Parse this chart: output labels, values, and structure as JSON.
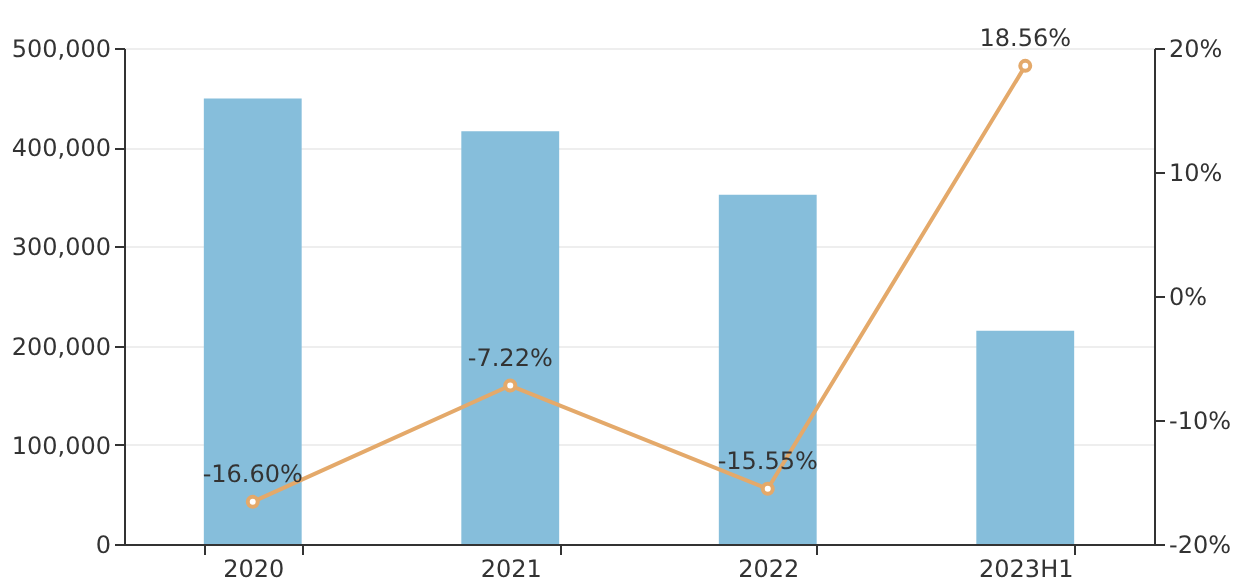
{
  "chart_data": {
    "type": "bar",
    "categories": [
      "2020",
      "2021",
      "2022",
      "2023H1"
    ],
    "series": [
      {
        "color": "#86bedb",
        "values": [
          449000,
          416000,
          352000,
          215000
        ]
      },
      {
        "type": "line",
        "axis": "y2",
        "color": "#e4a96a",
        "marker": "circle",
        "values": [
          -16.6,
          -7.22,
          -15.55,
          18.56
        ],
        "value_labels": [
          "-16.60%",
          "-7.22%",
          "-15.55%",
          "18.56%"
        ]
      }
    ],
    "ylim": [
      0,
      500000
    ],
    "yticks": [
      0,
      {
        "value": 100000,
        "label": "100,000"
      },
      {
        "value": 200000,
        "label": "200,000"
      },
      {
        "value": 300000,
        "label": "300,000"
      },
      {
        "value": 400000,
        "label": "400,000"
      },
      {
        "value": 500000,
        "label": "500,000"
      }
    ],
    "y2lim": [
      -20,
      20
    ],
    "y2ticks": [
      {
        "value": -20,
        "label": "-20%"
      },
      {
        "value": -10,
        "label": "-10%"
      },
      {
        "value": 0,
        "label": "0%"
      },
      {
        "value": 10,
        "label": "10%"
      },
      {
        "value": 20,
        "label": "20%"
      }
    ],
    "grid": "y"
  }
}
